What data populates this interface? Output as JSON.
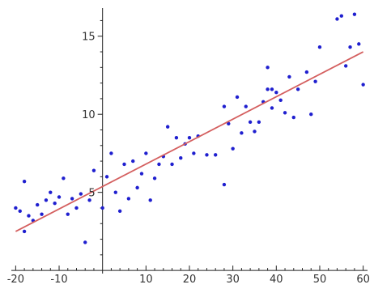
{
  "chart_data": {
    "type": "scatter",
    "title": "",
    "xlabel": "",
    "ylabel": "",
    "xlim": [
      -21,
      61
    ],
    "ylim": [
      -0.2,
      16.8
    ],
    "grid": false,
    "x_ticks": [
      -20,
      -10,
      10,
      20,
      30,
      40,
      50,
      60
    ],
    "x_tick_labels": [
      "-20",
      "-10",
      "10",
      "20",
      "30",
      "40",
      "50",
      "60"
    ],
    "y_ticks": [
      5,
      10,
      15
    ],
    "y_tick_labels": [
      "5",
      "10",
      "15"
    ],
    "point_color": "#1f1fcf",
    "line_color": "#d45f5f",
    "series": [
      {
        "kind": "points",
        "x": [
          -20,
          -19,
          -18,
          -18,
          -17,
          -16,
          -15,
          -14,
          -13,
          -12,
          -11,
          -10,
          -9,
          -8,
          -7,
          -6,
          -5,
          -4,
          -3,
          -2,
          0,
          1,
          2,
          3,
          4,
          5,
          6,
          7,
          8,
          9,
          10,
          11,
          12,
          13,
          14,
          15,
          16,
          17,
          18,
          19,
          20,
          21,
          22,
          24,
          26,
          28,
          29,
          30,
          31,
          32,
          33,
          34,
          35,
          36,
          37,
          38,
          38,
          39,
          40,
          41,
          42,
          43,
          44,
          45,
          47,
          49,
          50,
          54,
          55,
          56,
          57,
          58,
          59,
          60,
          28,
          39,
          48
        ],
        "y": [
          4,
          3.8,
          5.7,
          2.5,
          3.5,
          3.2,
          4.2,
          3.6,
          4.5,
          5,
          4.3,
          4.7,
          5.9,
          3.6,
          4.6,
          4,
          4.9,
          1.8,
          4.5,
          6.4,
          4,
          6,
          7.5,
          5,
          3.8,
          6.8,
          4.6,
          7,
          5.3,
          6.2,
          7.5,
          4.5,
          5.9,
          6.8,
          7.3,
          9.2,
          6.8,
          8.5,
          7.2,
          8.1,
          8.5,
          7.5,
          8.6,
          7.4,
          7.4,
          10.5,
          9.4,
          7.8,
          11.1,
          8.8,
          10.5,
          9.5,
          8.9,
          9.5,
          10.8,
          11.6,
          13,
          10.4,
          11.4,
          10.9,
          10.1,
          12.4,
          9.8,
          11.6,
          12.7,
          12.1,
          14.3,
          16.1,
          16.3,
          13.1,
          14.3,
          16.4,
          14.5,
          11.9,
          5.5,
          11.6,
          10
        ]
      },
      {
        "kind": "regression-line",
        "x": [
          -20,
          60
        ],
        "y": [
          2.5,
          14
        ]
      }
    ]
  }
}
